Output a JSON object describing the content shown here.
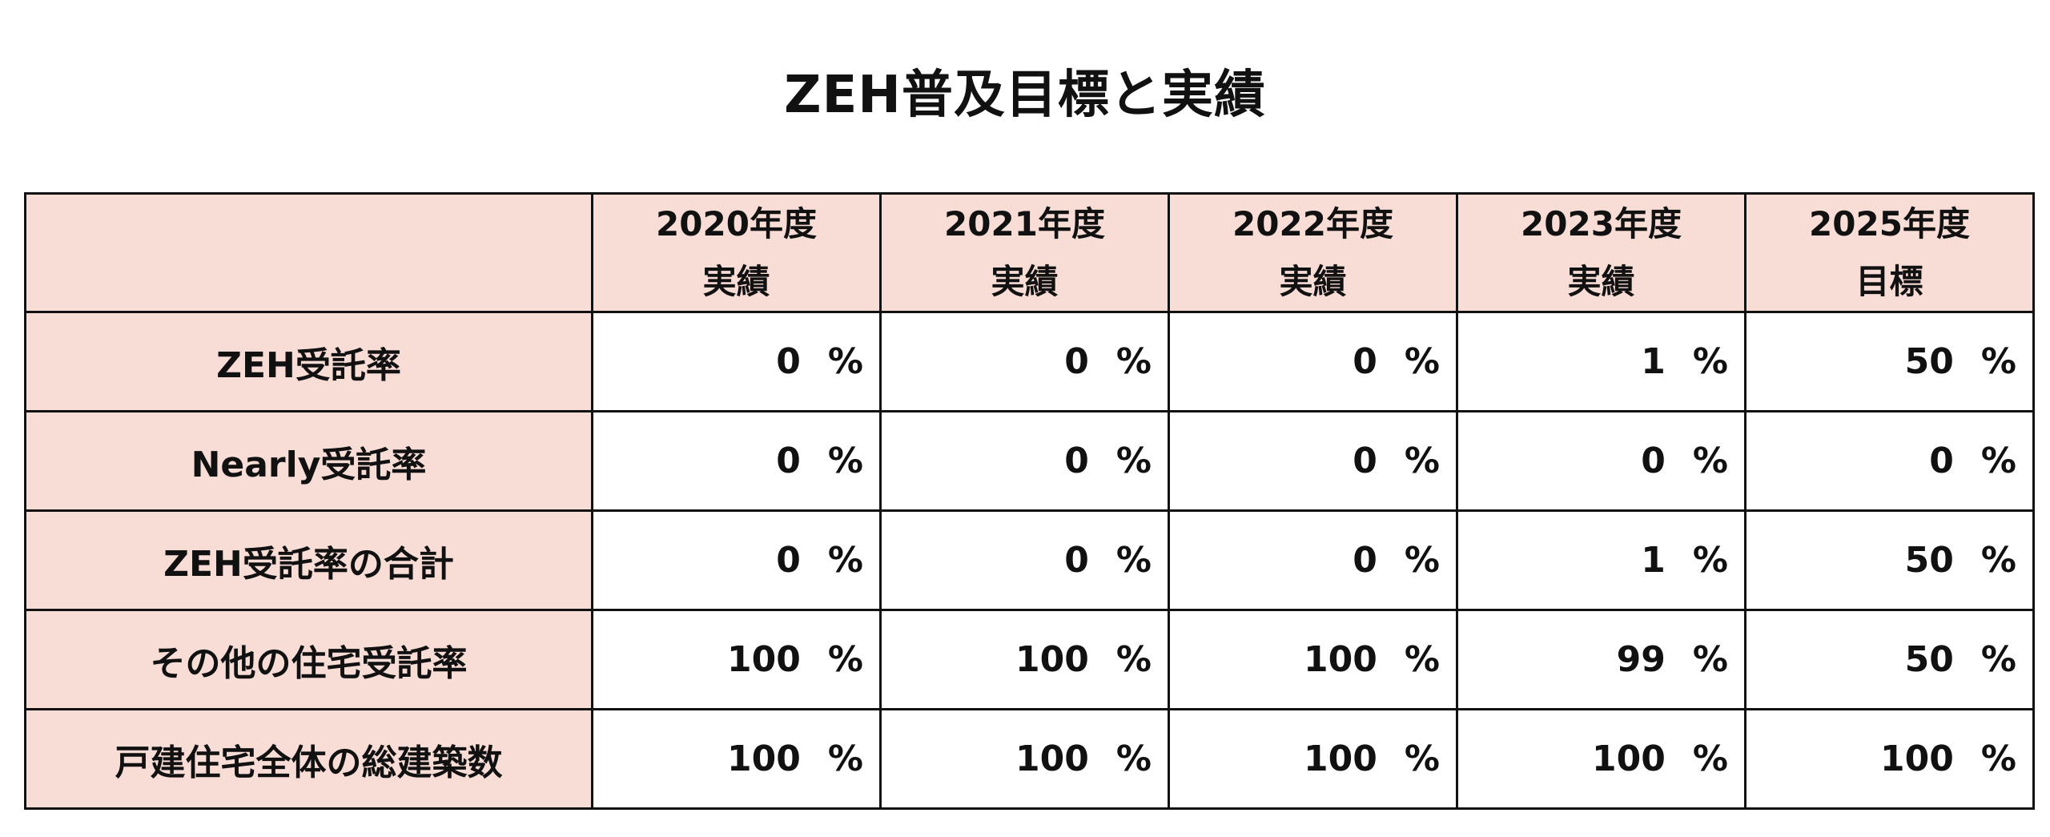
{
  "title": "ZEH普及目標と実績",
  "table": {
    "columns": [
      {
        "year": "2020年度",
        "kind": "実績"
      },
      {
        "year": "2021年度",
        "kind": "実績"
      },
      {
        "year": "2022年度",
        "kind": "実績"
      },
      {
        "year": "2023年度",
        "kind": "実績"
      },
      {
        "year": "2025年度",
        "kind": "目標"
      }
    ],
    "unit": "%",
    "rows": [
      {
        "label": "ZEH受託率",
        "values": [
          "0",
          "0",
          "0",
          "1",
          "50"
        ]
      },
      {
        "label": "Nearly受託率",
        "values": [
          "0",
          "0",
          "0",
          "0",
          "0"
        ]
      },
      {
        "label": "ZEH受託率の合計",
        "values": [
          "0",
          "0",
          "0",
          "1",
          "50"
        ]
      },
      {
        "label": "その他の住宅受託率",
        "values": [
          "100",
          "100",
          "100",
          "99",
          "50"
        ]
      },
      {
        "label": "戸建住宅全体の総建築数",
        "values": [
          "100",
          "100",
          "100",
          "100",
          "100"
        ]
      }
    ]
  },
  "colors": {
    "header_bg": "#f8dcd6",
    "border": "#111111"
  }
}
